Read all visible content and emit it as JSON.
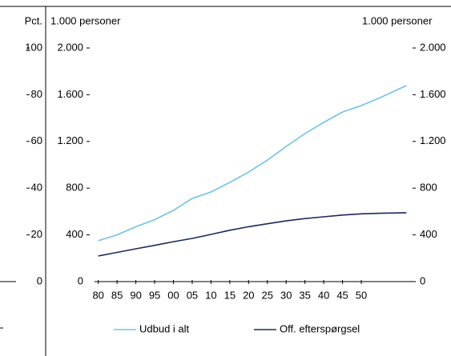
{
  "chart_data": [
    {
      "type": "line",
      "y_label": "Pct.",
      "ylim": [
        0,
        100
      ],
      "yticks": [
        0,
        20,
        40,
        60,
        80,
        100
      ]
    },
    {
      "type": "line",
      "y_label": "1.000 personer",
      "y2_label": "1.000 personer",
      "x": [
        1980,
        1985,
        1990,
        1995,
        2000,
        2005,
        2010,
        2015,
        2020,
        2025,
        2030,
        2035,
        2040,
        2045,
        2050,
        2055,
        2062
      ],
      "xlim": [
        1979,
        2063
      ],
      "xticks": [
        {
          "value": 1980,
          "label": "80"
        },
        {
          "value": 1985,
          "label": "85"
        },
        {
          "value": 1990,
          "label": "90"
        },
        {
          "value": 1995,
          "label": "95"
        },
        {
          "value": 2000,
          "label": "00"
        },
        {
          "value": 2005,
          "label": "05"
        },
        {
          "value": 2010,
          "label": "10"
        },
        {
          "value": 2015,
          "label": "15"
        },
        {
          "value": 2020,
          "label": "20"
        },
        {
          "value": 2025,
          "label": "25"
        },
        {
          "value": 2030,
          "label": "30"
        },
        {
          "value": 2035,
          "label": "35"
        },
        {
          "value": 2040,
          "label": "40"
        },
        {
          "value": 2045,
          "label": "45"
        },
        {
          "value": 2050,
          "label": "50"
        }
      ],
      "ylim": [
        0,
        2000
      ],
      "yticks": [
        0,
        400,
        800,
        {
          "value": 1200,
          "label": "1.200"
        },
        {
          "value": 1600,
          "label": "1.600"
        },
        {
          "value": 2000,
          "label": "2.000"
        }
      ],
      "y2lim": [
        0,
        2000
      ],
      "y2ticks": [
        0,
        400,
        800,
        {
          "value": 1200,
          "label": "1.200"
        },
        {
          "value": 1600,
          "label": "1.600"
        },
        {
          "value": 2000,
          "label": "2.000"
        }
      ],
      "series": [
        {
          "name": "Udbud i alt",
          "color": "#6cc3e8",
          "values": [
            350,
            400,
            470,
            530,
            610,
            712,
            767,
            850,
            938,
            1040,
            1157,
            1267,
            1363,
            1452,
            1507,
            1575,
            1678
          ]
        },
        {
          "name": "Off. efterspørgsel",
          "color": "#1a2a5a",
          "values": [
            219,
            250,
            281,
            310,
            342,
            370,
            404,
            440,
            470,
            495,
            520,
            540,
            555,
            570,
            580,
            585,
            590
          ]
        }
      ]
    }
  ]
}
